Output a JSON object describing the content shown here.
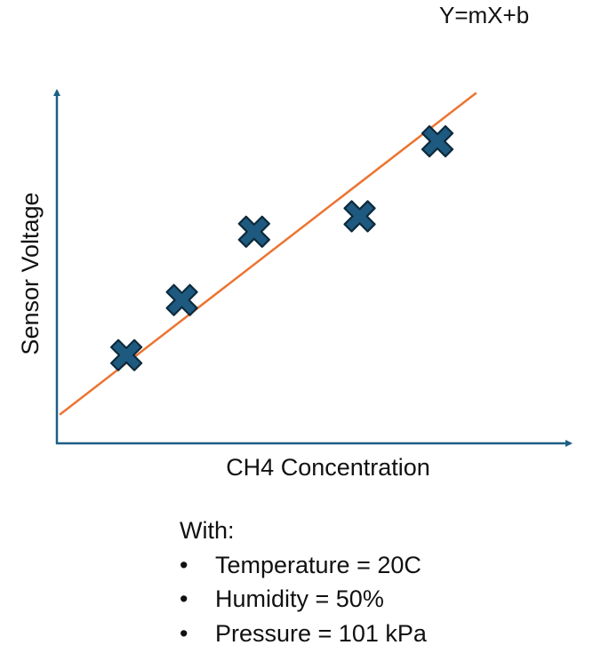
{
  "chart_data": {
    "type": "scatter",
    "xlabel": "CH4 Concentration",
    "ylabel": "Sensor Voltage",
    "x": [
      1.0,
      2.0,
      3.3,
      5.2,
      6.6
    ],
    "y": [
      1.0,
      2.25,
      3.8,
      4.15,
      5.85
    ],
    "fit_line": {
      "label": "Y=mX+b",
      "x": [
        -0.2,
        7.3
      ],
      "y": [
        -0.35,
        6.95
      ]
    },
    "xlim": [
      -0.25,
      9.0
    ],
    "ylim": [
      -1.0,
      7.0
    ],
    "grid": false,
    "colors": {
      "axis": "#1c5f86",
      "marker": "#1e5a80",
      "marker_outline": "#0d2a3c",
      "fit_line": "#ec7430"
    }
  },
  "notes": {
    "heading": "With:",
    "bullet_char": "•",
    "items": [
      "Temperature = 20C",
      "Humidity = 50%",
      "Pressure = 101 kPa"
    ]
  }
}
